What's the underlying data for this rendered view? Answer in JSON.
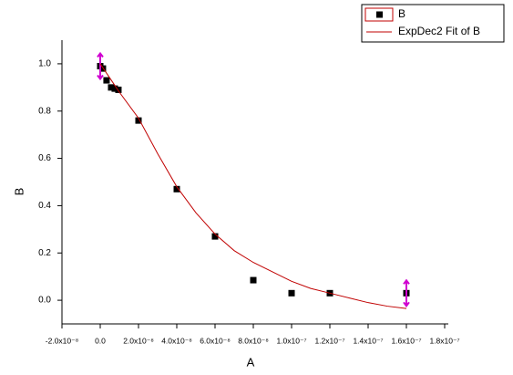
{
  "chart_data": {
    "type": "scatter",
    "x_label": "A",
    "y_label": "B",
    "xlim": [
      -2e-08,
      1.8e-07
    ],
    "ylim": [
      -0.1,
      1.1
    ],
    "xticks": [
      {
        "value": -2e-08,
        "label": "-2.0x10⁻⁸"
      },
      {
        "value": 0,
        "label": "0.0"
      },
      {
        "value": 2e-08,
        "label": "2.0x10⁻⁸"
      },
      {
        "value": 4e-08,
        "label": "4.0x10⁻⁸"
      },
      {
        "value": 6e-08,
        "label": "6.0x10⁻⁸"
      },
      {
        "value": 8e-08,
        "label": "8.0x10⁻⁸"
      },
      {
        "value": 1e-07,
        "label": "1.0x10⁻⁷"
      },
      {
        "value": 1.2e-07,
        "label": "1.2x10⁻⁷"
      },
      {
        "value": 1.4e-07,
        "label": "1.4x10⁻⁷"
      },
      {
        "value": 1.6e-07,
        "label": "1.6x10⁻⁷"
      },
      {
        "value": 1.8e-07,
        "label": "1.8x10⁻⁷"
      }
    ],
    "yticks": [
      {
        "value": 0,
        "label": "0.0"
      },
      {
        "value": 0.2,
        "label": "0.2"
      },
      {
        "value": 0.4,
        "label": "0.4"
      },
      {
        "value": 0.6,
        "label": "0.6"
      },
      {
        "value": 0.8,
        "label": "0.8"
      },
      {
        "value": 1,
        "label": "1.0"
      }
    ],
    "legend": "top-right",
    "series": [
      {
        "name": "B",
        "color": "#000000",
        "mode": "markers",
        "x": [
          0,
          1.4e-09,
          3.3e-09,
          5.7e-09,
          7.6e-09,
          9.5e-09,
          2e-08,
          4e-08,
          6e-08,
          8e-08,
          1e-07,
          1.2e-07,
          1.6e-07
        ],
        "values": [
          0.99,
          0.98,
          0.93,
          0.9,
          0.895,
          0.89,
          0.76,
          0.47,
          0.27,
          0.085,
          0.03,
          0.03,
          0.03
        ]
      },
      {
        "name": "ExpDec2 Fit of B",
        "color": "#c00000",
        "mode": "line",
        "x": [
          0,
          1e-08,
          2e-08,
          3e-08,
          4e-08,
          5e-08,
          6e-08,
          7e-08,
          8e-08,
          9e-08,
          1e-07,
          1.1e-07,
          1.2e-07,
          1.3e-07,
          1.4e-07,
          1.5e-07,
          1.6e-07
        ],
        "values": [
          1.0,
          0.88,
          0.77,
          0.62,
          0.48,
          0.37,
          0.28,
          0.21,
          0.16,
          0.12,
          0.08,
          0.05,
          0.03,
          0.01,
          -0.01,
          -0.025,
          -0.035
        ]
      }
    ]
  }
}
